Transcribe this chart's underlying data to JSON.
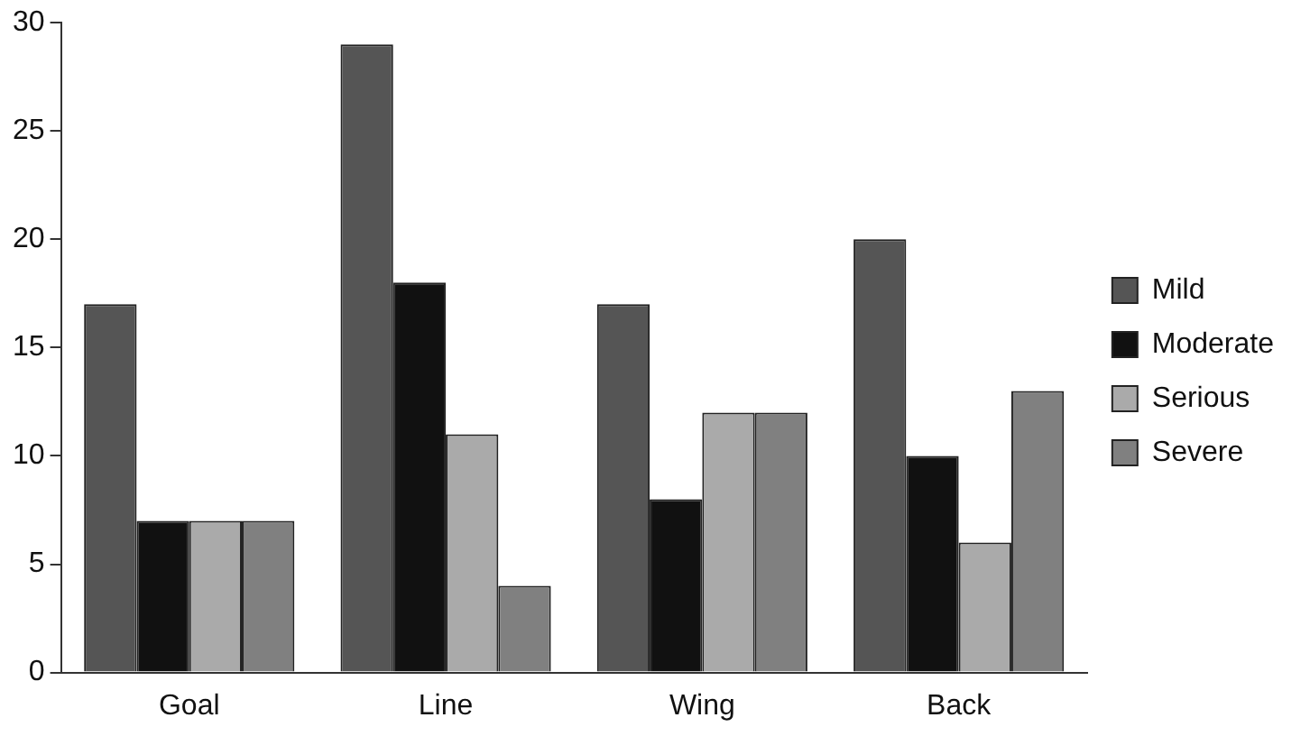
{
  "chart_data": {
    "type": "bar",
    "categories": [
      "Goal",
      "Line",
      "Wing",
      "Back"
    ],
    "series": [
      {
        "name": "Mild",
        "color": "#555555",
        "values": [
          17,
          29,
          17,
          20
        ]
      },
      {
        "name": "Moderate",
        "color": "#111111",
        "values": [
          7,
          18,
          8,
          10
        ]
      },
      {
        "name": "Serious",
        "color": "#aaaaaa",
        "values": [
          7,
          11,
          12,
          6
        ]
      },
      {
        "name": "Severe",
        "color": "#808080",
        "values": [
          7,
          4,
          12,
          13
        ]
      }
    ],
    "ylim": [
      0,
      30
    ],
    "yticks": [
      0,
      5,
      10,
      15,
      20,
      25,
      30
    ],
    "grid": false,
    "legend": "right"
  }
}
